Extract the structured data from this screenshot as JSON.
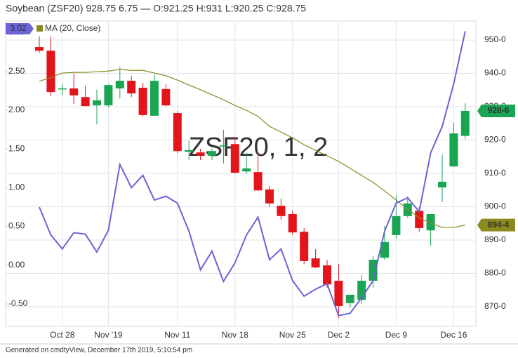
{
  "chart_data": {
    "type": "candlestick",
    "title": "Soybean (ZSF20) 928.75 6.75 — O:921.25 H:931 L:920.25 C:928.75",
    "watermark": "ZSF20, 1, 2",
    "footer": "Generated on cmdtyView, December 17th 2019, 5:10:54 pm",
    "categories": [
      null,
      null,
      "Oct 28",
      null,
      null,
      null,
      "Nov '19",
      null,
      null,
      null,
      null,
      null,
      "Nov 11",
      null,
      null,
      null,
      null,
      "Nov 18",
      null,
      null,
      null,
      null,
      "Nov 25",
      null,
      null,
      null,
      "Dec 2",
      null,
      null,
      null,
      null,
      "Dec 9",
      null,
      null,
      null,
      null,
      "Dec 16",
      null
    ],
    "ylim": [
      864.1,
      955.7
    ],
    "yticks": [
      {
        "value": 870,
        "label": "870-0"
      },
      {
        "value": 880,
        "label": "880-0"
      },
      {
        "value": 890,
        "label": "890-0"
      },
      {
        "value": 900,
        "label": "900-0"
      },
      {
        "value": 910,
        "label": "910-0"
      },
      {
        "value": 920,
        "label": "920-0"
      },
      {
        "value": 930,
        "label": "930-0"
      },
      {
        "value": 940,
        "label": "940-0"
      },
      {
        "value": 950,
        "label": "950-0"
      }
    ],
    "y2lim": [
      -0.79,
      3.15
    ],
    "y2ticks": [
      {
        "value": -0.5,
        "label": "-0.50"
      },
      {
        "value": 0,
        "label": "0.00"
      },
      {
        "value": 0.5,
        "label": "0.50"
      },
      {
        "value": 1,
        "label": "1.00"
      },
      {
        "value": 1.5,
        "label": "1.50"
      },
      {
        "value": 2,
        "label": "2.00"
      },
      {
        "value": 2.5,
        "label": "2.50"
      },
      {
        "value": 3,
        "label": "3.00"
      }
    ],
    "grid": true,
    "series": [
      {
        "up_color": "#1aa552",
        "down_color": "#e4141b",
        "last_label": "928-6",
        "open": [
          947.9,
          946.8,
          935.3,
          935.5,
          932.9,
          930.4,
          930.4,
          935.5,
          937.8,
          935.7,
          927.3,
          935.3,
          928.1,
          916.5,
          916.3,
          915.3,
          918.2,
          918.8,
          910.6,
          910.4,
          905.2,
          900.3,
          897.8,
          892.5,
          884.5,
          882.4,
          877.8,
          871.1,
          872.1,
          877.8,
          884.7,
          891.5,
          897.2,
          898.8,
          892.9,
          905.8,
          912.1,
          921.25
        ],
        "high": [
          951.1,
          951.1,
          936.8,
          939.9,
          936.3,
          935.1,
          936.7,
          942.0,
          939.3,
          937.2,
          939.7,
          936.7,
          928.7,
          919.9,
          917.4,
          917.4,
          923.1,
          921.0,
          916.1,
          916.1,
          906.2,
          902.4,
          898.8,
          893.6,
          887.3,
          884.1,
          882.8,
          873.6,
          879.5,
          885.2,
          894.2,
          903.5,
          903.1,
          899.9,
          897.8,
          915.7,
          925.2,
          931
        ],
        "low": [
          946.2,
          933.2,
          933.6,
          930.8,
          930.2,
          924.7,
          929.8,
          932.5,
          932.9,
          927.1,
          927.3,
          930.2,
          916.1,
          914.0,
          914.0,
          914.0,
          913.0,
          910.0,
          909.8,
          904.7,
          899.9,
          896.1,
          891.5,
          882.8,
          881.6,
          875.7,
          866.6,
          869.8,
          870.8,
          875.7,
          884.1,
          890.4,
          896.7,
          892.5,
          888.3,
          901.4,
          911.9,
          920.25
        ],
        "close": [
          946.8,
          934.4,
          935.5,
          933.4,
          930.2,
          931.9,
          936.5,
          937.8,
          934.0,
          927.5,
          937.8,
          930.4,
          916.7,
          917.0,
          915.3,
          916.7,
          918.4,
          910.2,
          911.5,
          904.9,
          901.0,
          897.2,
          892.3,
          883.7,
          881.8,
          876.7,
          870.2,
          873.6,
          877.8,
          884.1,
          889.4,
          897.2,
          901.0,
          893.6,
          897.8,
          907.5,
          922.0,
          928.75
        ]
      },
      {
        "name": "MA (20, Close)",
        "color": "#8c8a1e",
        "last_label": "894-4",
        "values": [
          937.6,
          938.8,
          940.1,
          940.3,
          940.3,
          940.5,
          940.7,
          941.2,
          940.9,
          940.9,
          940.1,
          939.3,
          938.0,
          936.5,
          935.1,
          933.6,
          932.1,
          930.4,
          928.9,
          927.1,
          924.1,
          922.4,
          920.7,
          918.6,
          916.9,
          915.3,
          913.6,
          911.5,
          909.4,
          907.3,
          904.7,
          902.0,
          899.3,
          896.7,
          895.1,
          893.8,
          893.8,
          894.5
        ]
      },
      {
        "color": "#6b63d6",
        "axis": "y2",
        "last_label": "3.02",
        "values": [
          0.75,
          0.39,
          0.21,
          0.42,
          0.4,
          0.17,
          0.45,
          1.3,
          1.0,
          1.16,
          0.84,
          0.89,
          0.8,
          0.44,
          -0.06,
          0.18,
          -0.21,
          0.03,
          0.39,
          0.62,
          0.07,
          0.21,
          -0.2,
          -0.4,
          -0.31,
          -0.24,
          -0.65,
          -0.62,
          -0.42,
          -0.2,
          0.44,
          0.8,
          0.87,
          0.69,
          1.45,
          1.79,
          2.34,
          3.02
        ]
      }
    ]
  }
}
